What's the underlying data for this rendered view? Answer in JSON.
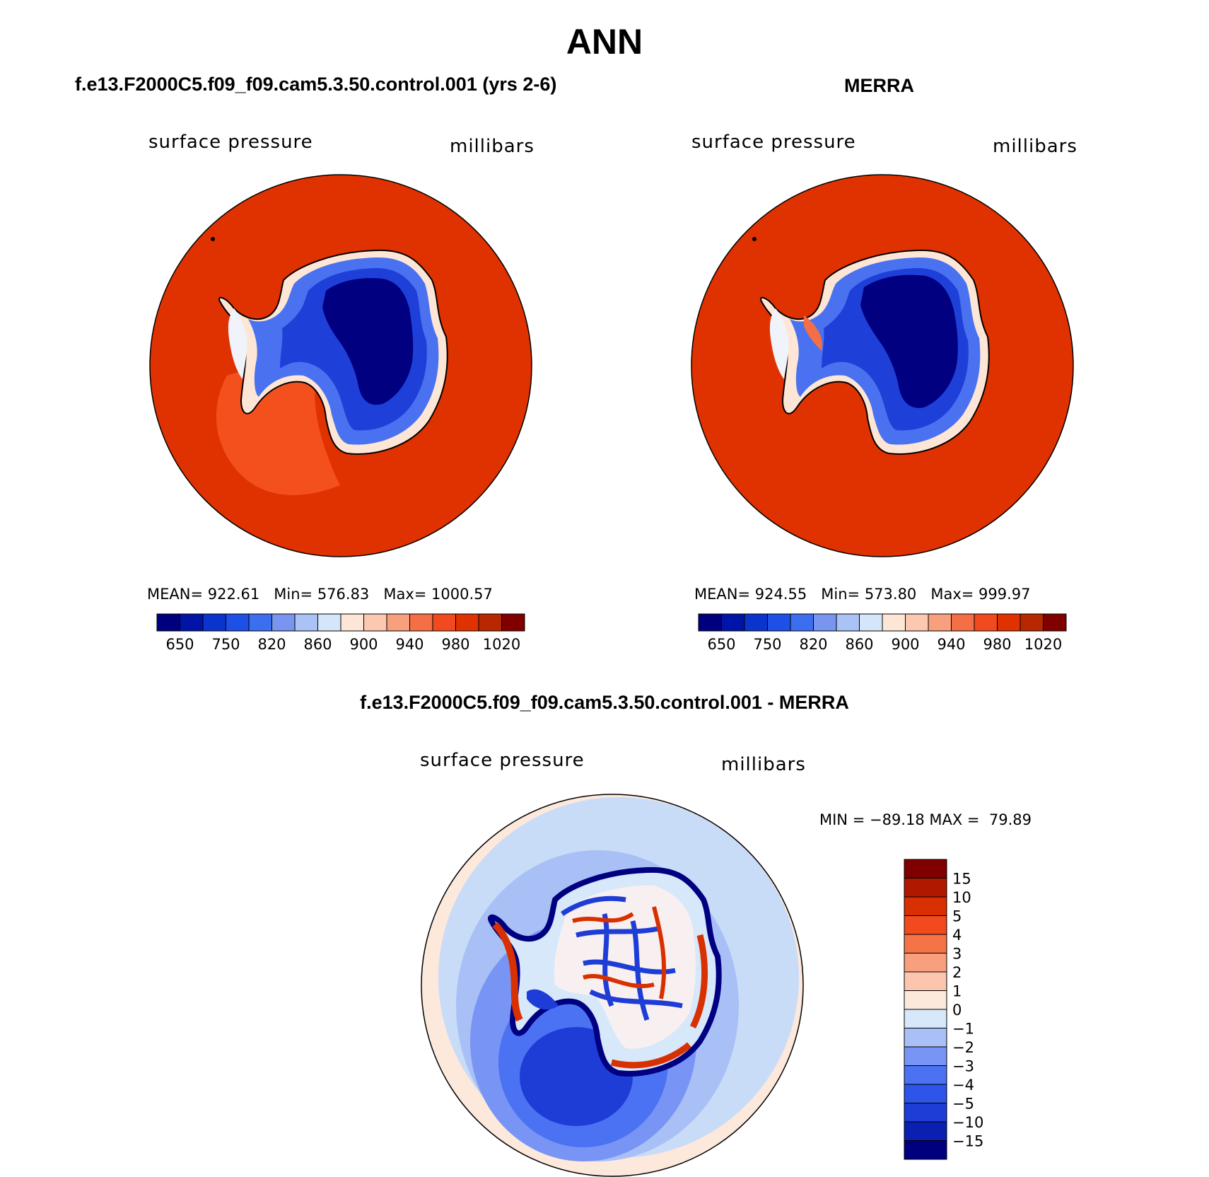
{
  "figure": {
    "title": "ANN"
  },
  "panels": [
    {
      "id": "model",
      "title": "f.e13.F2000C5.f09_f09.cam5.3.50.control.001 (yrs 2-6)",
      "variable": "surface pressure",
      "units": "millibars",
      "stats": {
        "mean_label": "MEAN=",
        "mean": "922.61",
        "min_label": "Min=",
        "min": "576.83",
        "max_label": "Max=",
        "max": "1000.57"
      }
    },
    {
      "id": "obs",
      "title": "MERRA",
      "variable": "surface pressure",
      "units": "millibars",
      "stats": {
        "mean_label": "MEAN=",
        "mean": "924.55",
        "min_label": "Min=",
        "min": "573.80",
        "max_label": "Max=",
        "max": "999.97"
      }
    },
    {
      "id": "diff",
      "title": "f.e13.F2000C5.f09_f09.cam5.3.50.control.001 - MERRA",
      "variable": "surface pressure",
      "units": "millibars",
      "stats": {
        "min_label": "MIN =",
        "min": "−89.18",
        "max_label": "MAX =",
        "max": "79.89"
      }
    }
  ],
  "colorbars": {
    "absolute": {
      "colors": [
        "#00007f",
        "#0014a8",
        "#0a34cc",
        "#1e50e8",
        "#3c6ef0",
        "#7896f0",
        "#aac2f6",
        "#d6e6fa",
        "#fde6d6",
        "#fcc8b0",
        "#f8a07e",
        "#f46e46",
        "#f04a1e",
        "#e03200",
        "#b82800",
        "#800000"
      ],
      "labels": [
        "650",
        "750",
        "820",
        "860",
        "900",
        "940",
        "980",
        "1020"
      ]
    },
    "difference": {
      "colors": [
        "#00007f",
        "#0a20b0",
        "#1e3cd6",
        "#2d55ea",
        "#4a72f2",
        "#7894f4",
        "#a8c0f6",
        "#d6e8fa",
        "#fde8dc",
        "#fcc6ae",
        "#f8a07e",
        "#f47448",
        "#f04a1e",
        "#d83000",
        "#b01800",
        "#800000"
      ],
      "labels": [
        "15",
        "10",
        "5",
        "4",
        "3",
        "2",
        "1",
        "0",
        "−1",
        "−2",
        "−3",
        "−4",
        "−5",
        "−10",
        "−15"
      ]
    }
  },
  "map_colors": {
    "ocean_absolute": "#e03200",
    "ocean_low_sector": "#f4501e",
    "ice_deep": "#000080",
    "ice_mid": "#1e40d8",
    "ice_light": "#4a72f0",
    "coast_white": "#f0f4fa",
    "diff_bg": "#c8dcf8",
    "diff_ring": "#fde8dc",
    "diff_blue": "#4a72f2",
    "diff_deep": "#1e3cd6",
    "diff_red": "#d83000"
  }
}
